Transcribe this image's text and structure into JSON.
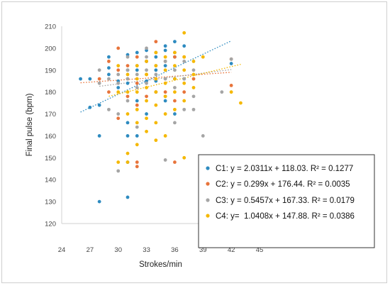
{
  "chart_data": {
    "type": "scatter",
    "title": "",
    "xlabel": "Strokes/min",
    "ylabel": "Final pulse (bpm)",
    "xlim": [
      24,
      45
    ],
    "ylim": [
      120,
      210
    ],
    "xticks": [
      24,
      27,
      30,
      33,
      36,
      39,
      42,
      45
    ],
    "yticks": [
      120,
      130,
      140,
      150,
      160,
      170,
      180,
      190,
      200,
      210
    ],
    "grid": false,
    "legend_position": "bottom-right",
    "series": [
      {
        "name": "C1: y = 2.0311x + 118.03. R² = 0.1277",
        "color": "#2e8bc0",
        "trend": {
          "slope": 2.0311,
          "intercept": 118.03,
          "x_range": [
            26,
            42
          ]
        },
        "points": [
          [
            26,
            186
          ],
          [
            27,
            186
          ],
          [
            27,
            173
          ],
          [
            28,
            130
          ],
          [
            28,
            160
          ],
          [
            28,
            174
          ],
          [
            29,
            196
          ],
          [
            29,
            191
          ],
          [
            29,
            188
          ],
          [
            30,
            185
          ],
          [
            30,
            182
          ],
          [
            31,
            132
          ],
          [
            31,
            148
          ],
          [
            31,
            160
          ],
          [
            31,
            166
          ],
          [
            31,
            197
          ],
          [
            31,
            190
          ],
          [
            31,
            184
          ],
          [
            32,
            160
          ],
          [
            32,
            176
          ],
          [
            32,
            190
          ],
          [
            32,
            198
          ],
          [
            33,
            170
          ],
          [
            33,
            185
          ],
          [
            33,
            194
          ],
          [
            33,
            199
          ],
          [
            34,
            185
          ],
          [
            34,
            190
          ],
          [
            34,
            196
          ],
          [
            35,
            176
          ],
          [
            35,
            192
          ],
          [
            35,
            199
          ],
          [
            35,
            201
          ],
          [
            36,
            170
          ],
          [
            36,
            196
          ],
          [
            36,
            203
          ],
          [
            36,
            186
          ],
          [
            37,
            201
          ],
          [
            37,
            186
          ],
          [
            42,
            193
          ]
        ]
      },
      {
        "name": "C2: y = 0.299x + 176.44. R² = 0.0035",
        "color": "#e8743b",
        "trend": {
          "slope": 0.299,
          "intercept": 176.44,
          "x_range": [
            26,
            42
          ]
        },
        "points": [
          [
            28,
            186
          ],
          [
            29,
            180
          ],
          [
            29,
            194
          ],
          [
            30,
            168
          ],
          [
            30,
            190
          ],
          [
            30,
            200
          ],
          [
            31,
            178
          ],
          [
            31,
            186
          ],
          [
            31,
            192
          ],
          [
            32,
            146
          ],
          [
            32,
            148
          ],
          [
            32,
            174
          ],
          [
            32,
            184
          ],
          [
            32,
            196
          ],
          [
            33,
            178
          ],
          [
            33,
            188
          ],
          [
            33,
            194
          ],
          [
            34,
            203
          ],
          [
            34,
            180
          ],
          [
            34,
            186
          ],
          [
            35,
            180
          ],
          [
            35,
            194
          ],
          [
            36,
            148
          ],
          [
            36,
            176
          ],
          [
            36,
            196
          ],
          [
            37,
            196
          ],
          [
            37,
            180
          ],
          [
            38,
            186
          ],
          [
            42,
            183
          ],
          [
            42,
            195
          ]
        ]
      },
      {
        "name": "C3: y = 0.5457x + 167.33. R² = 0.0179",
        "color": "#a5a5a5",
        "trend": {
          "slope": 0.5457,
          "intercept": 167.33,
          "x_range": [
            28,
            42
          ]
        },
        "points": [
          [
            28,
            184
          ],
          [
            28,
            190
          ],
          [
            29,
            172
          ],
          [
            29,
            186
          ],
          [
            30,
            144
          ],
          [
            30,
            170
          ],
          [
            30,
            184
          ],
          [
            30,
            188
          ],
          [
            31,
            176
          ],
          [
            31,
            186
          ],
          [
            31,
            190
          ],
          [
            31,
            196
          ],
          [
            32,
            164
          ],
          [
            32,
            182
          ],
          [
            32,
            188
          ],
          [
            32,
            192
          ],
          [
            33,
            184
          ],
          [
            33,
            190
          ],
          [
            33,
            196
          ],
          [
            33,
            200
          ],
          [
            34,
            180
          ],
          [
            34,
            188
          ],
          [
            34,
            192
          ],
          [
            34,
            198
          ],
          [
            35,
            149
          ],
          [
            35,
            178
          ],
          [
            35,
            186
          ],
          [
            35,
            194
          ],
          [
            36,
            166
          ],
          [
            36,
            182
          ],
          [
            36,
            190
          ],
          [
            36,
            198
          ],
          [
            37,
            172
          ],
          [
            37,
            186
          ],
          [
            37,
            194
          ],
          [
            38,
            172
          ],
          [
            38,
            178
          ],
          [
            38,
            190
          ],
          [
            39,
            160
          ],
          [
            41,
            180
          ],
          [
            42,
            195
          ]
        ]
      },
      {
        "name": "C4: y=  1.0408x + 147.88. R² = 0.0386",
        "color": "#f5b800",
        "trend": {
          "slope": 1.0408,
          "intercept": 147.88,
          "x_range": [
            29,
            43
          ]
        },
        "points": [
          [
            30,
            148
          ],
          [
            30,
            180
          ],
          [
            30,
            192
          ],
          [
            31,
            148
          ],
          [
            31,
            152
          ],
          [
            31,
            170
          ],
          [
            31,
            180
          ],
          [
            31,
            188
          ],
          [
            32,
            156
          ],
          [
            32,
            166
          ],
          [
            32,
            172
          ],
          [
            32,
            180
          ],
          [
            32,
            186
          ],
          [
            32,
            192
          ],
          [
            33,
            162
          ],
          [
            33,
            168
          ],
          [
            33,
            176
          ],
          [
            33,
            182
          ],
          [
            33,
            188
          ],
          [
            33,
            194
          ],
          [
            34,
            158
          ],
          [
            34,
            166
          ],
          [
            34,
            174
          ],
          [
            34,
            180
          ],
          [
            34,
            186
          ],
          [
            34,
            192
          ],
          [
            34,
            198
          ],
          [
            35,
            160
          ],
          [
            35,
            170
          ],
          [
            35,
            178
          ],
          [
            35,
            184
          ],
          [
            35,
            190
          ],
          [
            35,
            196
          ],
          [
            36,
            172
          ],
          [
            36,
            180
          ],
          [
            36,
            186
          ],
          [
            36,
            192
          ],
          [
            36,
            198
          ],
          [
            37,
            150
          ],
          [
            37,
            176
          ],
          [
            37,
            184
          ],
          [
            37,
            190
          ],
          [
            37,
            196
          ],
          [
            37,
            207
          ],
          [
            38,
            182
          ],
          [
            38,
            188
          ],
          [
            38,
            194
          ],
          [
            39,
            196
          ],
          [
            42,
            180
          ],
          [
            43,
            175
          ]
        ]
      }
    ]
  }
}
